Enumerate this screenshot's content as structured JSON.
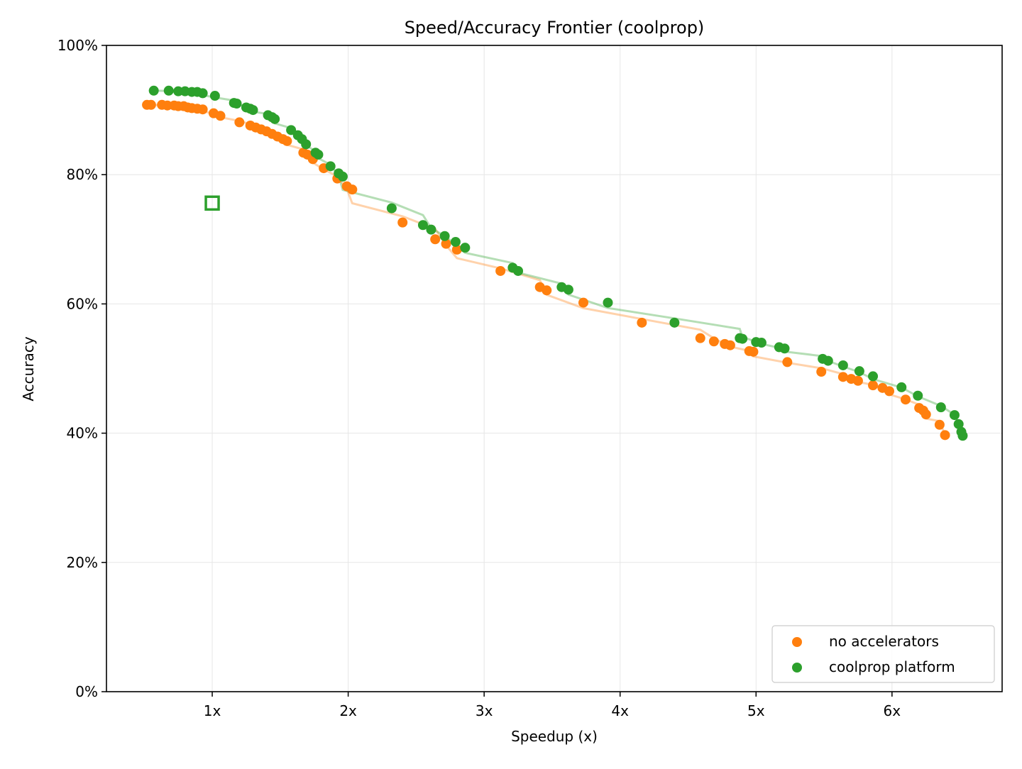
{
  "chart_data": {
    "type": "scatter",
    "title": "Speed/Accuracy Frontier (coolprop)",
    "xlabel": "Speedup (x)",
    "ylabel": "Accuracy",
    "xlim": [
      0.222,
      6.81
    ],
    "ylim": [
      0,
      100
    ],
    "x_ticks": [
      1,
      2,
      3,
      4,
      5,
      6
    ],
    "x_tick_labels": [
      "1x",
      "2x",
      "3x",
      "4x",
      "5x",
      "6x"
    ],
    "y_ticks": [
      0,
      20,
      40,
      60,
      80,
      100
    ],
    "y_tick_labels": [
      "0%",
      "20%",
      "40%",
      "60%",
      "80%",
      "100%"
    ],
    "grid": true,
    "legend_placement": "bottom-right",
    "series": [
      {
        "name": "no accelerators",
        "color": "#ff7f0e",
        "trend_line": true,
        "x": [
          0.52,
          0.55,
          0.63,
          0.67,
          0.72,
          0.75,
          0.79,
          0.82,
          0.85,
          0.89,
          0.93,
          1.01,
          1.06,
          1.2,
          1.28,
          1.32,
          1.36,
          1.4,
          1.44,
          1.48,
          1.52,
          1.55,
          1.67,
          1.7,
          1.74,
          1.82,
          1.92,
          1.99,
          2.03,
          2.4,
          2.64,
          2.72,
          2.8,
          3.12,
          3.41,
          3.46,
          3.73,
          4.16,
          4.59,
          4.69,
          4.77,
          4.81,
          4.95,
          4.98,
          5.23,
          5.48,
          5.64,
          5.7,
          5.75,
          5.86,
          5.93,
          5.98,
          6.1,
          6.2,
          6.23,
          6.25,
          6.35,
          6.39
        ],
        "y": [
          90.8,
          90.8,
          90.8,
          90.7,
          90.7,
          90.6,
          90.6,
          90.4,
          90.3,
          90.2,
          90.1,
          89.5,
          89.1,
          88.1,
          87.6,
          87.3,
          87.0,
          86.7,
          86.3,
          85.9,
          85.5,
          85.2,
          83.4,
          83.1,
          82.4,
          81.0,
          79.4,
          78.2,
          77.7,
          72.6,
          70.0,
          69.3,
          68.4,
          65.1,
          62.6,
          62.1,
          60.2,
          57.1,
          54.7,
          54.2,
          53.8,
          53.6,
          52.7,
          52.6,
          51.0,
          49.5,
          48.7,
          48.4,
          48.1,
          47.4,
          47.0,
          46.5,
          45.2,
          43.9,
          43.5,
          42.9,
          41.3,
          39.7
        ]
      },
      {
        "name": "coolprop platform",
        "color": "#2ca02c",
        "trend_line": true,
        "x": [
          0.57,
          0.68,
          0.75,
          0.8,
          0.85,
          0.89,
          0.93,
          1.02,
          1.16,
          1.18,
          1.25,
          1.28,
          1.3,
          1.41,
          1.44,
          1.46,
          1.58,
          1.63,
          1.66,
          1.69,
          1.76,
          1.78,
          1.87,
          1.93,
          1.96,
          2.32,
          2.55,
          2.61,
          2.71,
          2.79,
          2.86,
          3.21,
          3.25,
          3.57,
          3.62,
          3.91,
          4.4,
          4.88,
          4.9,
          5.0,
          5.04,
          5.17,
          5.21,
          5.49,
          5.53,
          5.64,
          5.76,
          5.86,
          6.07,
          6.19,
          6.36,
          6.46,
          6.49,
          6.51,
          6.52
        ],
        "y": [
          93.0,
          93.0,
          92.9,
          92.9,
          92.8,
          92.8,
          92.6,
          92.2,
          91.1,
          91.0,
          90.4,
          90.2,
          90.0,
          89.2,
          88.9,
          88.6,
          86.9,
          86.1,
          85.5,
          84.7,
          83.4,
          83.1,
          81.3,
          80.2,
          79.7,
          74.8,
          72.2,
          71.5,
          70.5,
          69.6,
          68.7,
          65.6,
          65.1,
          62.6,
          62.2,
          60.2,
          57.1,
          54.7,
          54.6,
          54.1,
          54.0,
          53.3,
          53.1,
          51.5,
          51.2,
          50.5,
          49.6,
          48.8,
          47.1,
          45.8,
          44.0,
          42.8,
          41.4,
          40.2,
          39.6
        ]
      }
    ],
    "annotations": [
      {
        "marker": "hollow-square",
        "color": "#2ca02c",
        "x": 1.0,
        "y": 75.6
      }
    ]
  }
}
